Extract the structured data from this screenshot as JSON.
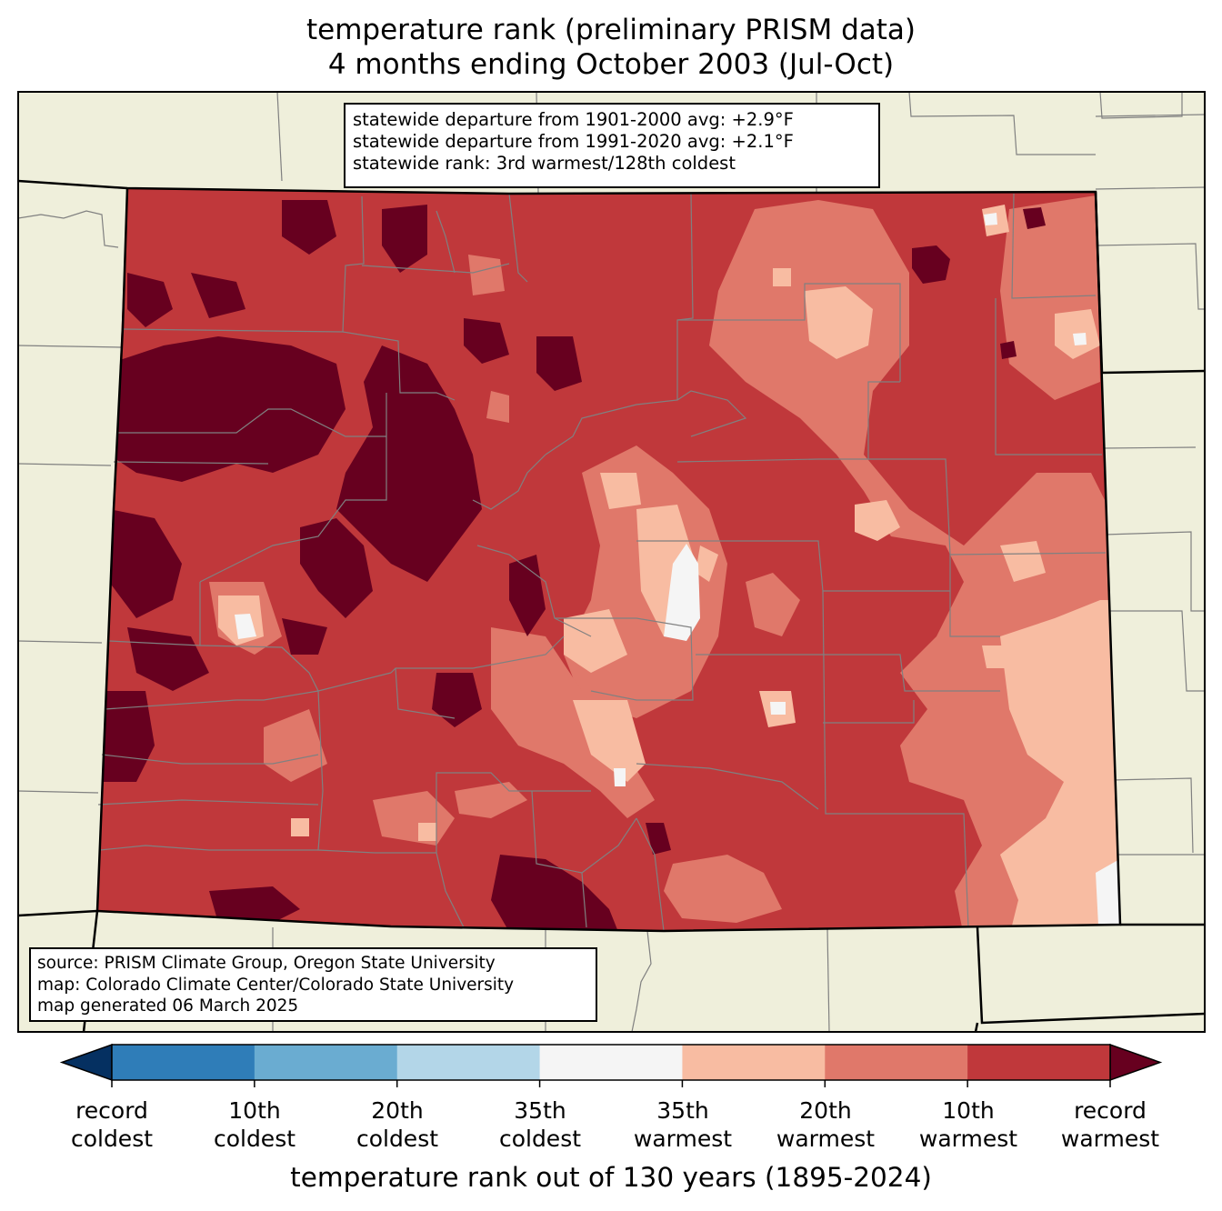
{
  "title": {
    "line1": "temperature rank (preliminary PRISM data)",
    "line2": "4 months ending October 2003 (Jul-Oct)"
  },
  "stats_box": {
    "line1": "statewide departure from 1901-2000 avg: +2.9°F",
    "line2": "statewide departure from 1991-2020 avg: +2.1°F",
    "line3": "statewide rank: 3rd warmest/128th coldest"
  },
  "source_box": {
    "line1": "source: PRISM Climate Group, Oregon State University",
    "line2": "map: Colorado Climate Center/Colorado State University",
    "line3": "map generated 06 March 2025"
  },
  "colorbar": {
    "title": "temperature rank out of 130 years (1895-2024)",
    "under_color": "#053061",
    "over_color": "#67001f",
    "bins": [
      {
        "color": "#2f7db8"
      },
      {
        "color": "#6aacd1"
      },
      {
        "color": "#b3d6e8"
      },
      {
        "color": "#f5f5f5"
      },
      {
        "color": "#f8bca2"
      },
      {
        "color": "#e0786a"
      },
      {
        "color": "#c0383b"
      }
    ],
    "ticks": [
      {
        "line1": "record",
        "line2": "coldest"
      },
      {
        "line1": "10th",
        "line2": "coldest"
      },
      {
        "line1": "20th",
        "line2": "coldest"
      },
      {
        "line1": "35th",
        "line2": "coldest"
      },
      {
        "line1": "35th",
        "line2": "warmest"
      },
      {
        "line1": "20th",
        "line2": "warmest"
      },
      {
        "line1": "10th",
        "line2": "warmest"
      },
      {
        "line1": "record",
        "line2": "warmest"
      }
    ]
  },
  "map_colors": {
    "land": "#efefdb",
    "base_state": "#c0383b",
    "record_warm": "#67001f",
    "tenth_warmest": "#c0383b",
    "twentieth_warmest": "#e0786a",
    "thirtyfifth_warmest": "#f8bca2",
    "near_normal": "#f5f5f5",
    "county_lines": "#808080",
    "state_lines": "#000000"
  }
}
